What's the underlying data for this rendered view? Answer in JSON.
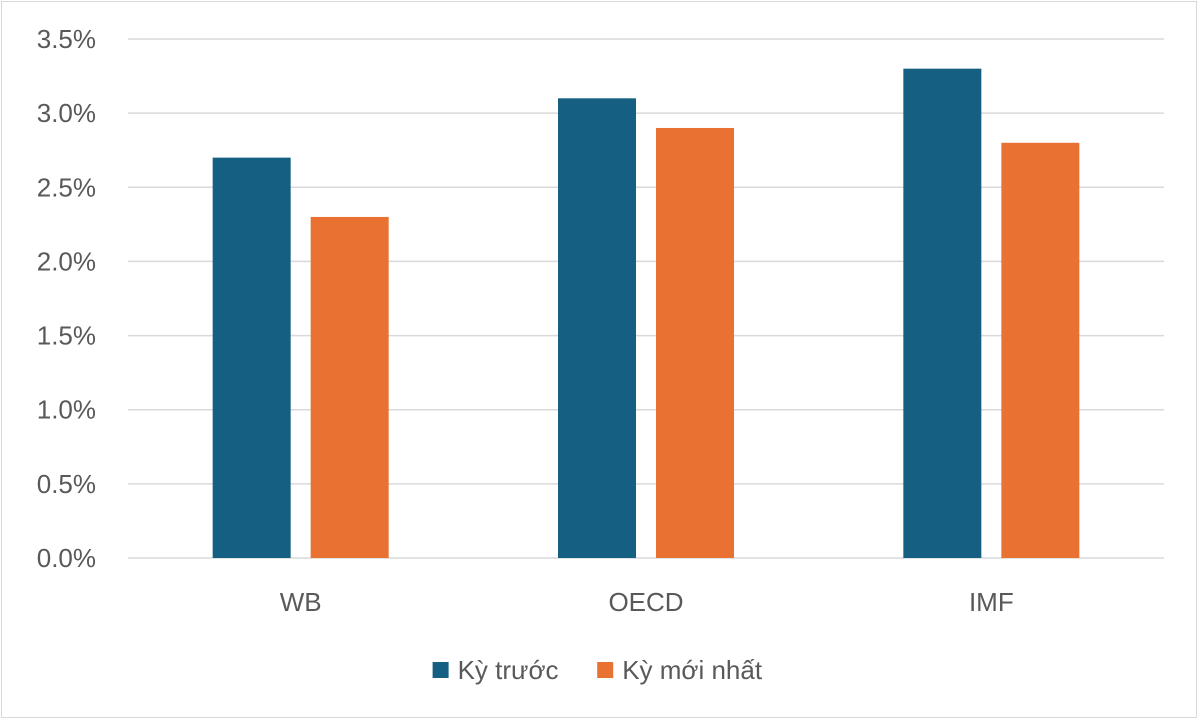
{
  "chart_data": {
    "type": "bar",
    "categories": [
      "WB",
      "OECD",
      "IMF"
    ],
    "series": [
      {
        "name": "Kỳ trước",
        "values": [
          2.7,
          3.1,
          3.3
        ],
        "color": "#156082"
      },
      {
        "name": "Kỳ mới nhất",
        "values": [
          2.3,
          2.9,
          2.8
        ],
        "color": "#E97132"
      }
    ],
    "y_ticks": [
      "0.0%",
      "0.5%",
      "1.0%",
      "1.5%",
      "2.0%",
      "2.5%",
      "3.0%",
      "3.5%"
    ],
    "ylim": [
      0,
      3.5
    ],
    "y_unit": "%",
    "grid": true,
    "legend_position": "bottom",
    "grid_color": "#d9d9d9"
  }
}
